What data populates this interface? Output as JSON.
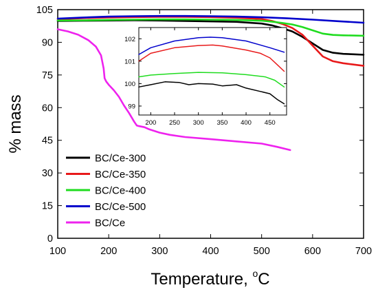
{
  "chart_data": [
    {
      "type": "line",
      "xlabel": "Temperature, ",
      "xlabel_unit": "C",
      "xlabel_unit_superscript": "o",
      "ylabel": "% mass",
      "xlim": [
        100,
        700
      ],
      "ylim": [
        0,
        105
      ],
      "xticks": [
        100,
        200,
        300,
        400,
        500,
        600,
        700
      ],
      "yticks": [
        0,
        15,
        30,
        45,
        60,
        75,
        90,
        105
      ],
      "legend": "left, lower-middle",
      "series": [
        {
          "name": "BC/Ce-300",
          "color": "#000000",
          "x": [
            100,
            150,
            200,
            250,
            300,
            350,
            400,
            450,
            500,
            520,
            540,
            560,
            580,
            600,
            620,
            640,
            660,
            680,
            700
          ],
          "y": [
            99.8,
            99.9,
            100.0,
            100.1,
            100.0,
            99.8,
            99.6,
            99.4,
            98.6,
            97.8,
            96.5,
            95.0,
            92.5,
            89.5,
            86.5,
            85.2,
            84.7,
            84.5,
            84.3
          ]
        },
        {
          "name": "BC/Ce-350",
          "color": "#e8191a",
          "x": [
            100,
            150,
            200,
            250,
            300,
            350,
            400,
            450,
            500,
            520,
            540,
            560,
            580,
            600,
            620,
            640,
            660,
            680,
            700
          ],
          "y": [
            100.6,
            101.1,
            101.4,
            101.6,
            101.7,
            101.7,
            101.6,
            101.3,
            100.7,
            99.8,
            98.5,
            96.6,
            93.5,
            88.5,
            83.5,
            81.3,
            80.4,
            79.8,
            79.2
          ]
        },
        {
          "name": "BC/Ce-400",
          "color": "#1fdc1f",
          "x": [
            100,
            150,
            200,
            250,
            300,
            350,
            400,
            450,
            500,
            520,
            540,
            560,
            580,
            600,
            620,
            640,
            660,
            700
          ],
          "y": [
            100.0,
            100.1,
            100.3,
            100.4,
            100.5,
            100.5,
            100.4,
            100.3,
            99.9,
            99.5,
            98.9,
            98.2,
            97.0,
            95.5,
            94.0,
            93.4,
            93.2,
            93.0
          ]
        },
        {
          "name": "BC/Ce-500",
          "color": "#0000cc",
          "x": [
            100,
            150,
            200,
            250,
            300,
            350,
            400,
            450,
            500,
            550,
            600,
            650,
            700
          ],
          "y": [
            100.9,
            101.4,
            101.8,
            102.0,
            102.1,
            102.1,
            102.0,
            101.8,
            101.5,
            101.0,
            100.4,
            99.7,
            99.0
          ]
        },
        {
          "name": "BC/Ce",
          "color": "#ee22ee",
          "x": [
            100,
            120,
            140,
            160,
            175,
            185,
            190,
            192,
            195,
            200,
            210,
            220,
            230,
            240,
            250,
            255,
            260,
            270,
            280,
            300,
            320,
            350,
            400,
            450,
            500,
            530,
            556
          ],
          "y": [
            96.0,
            95.0,
            93.5,
            91.0,
            88.0,
            84.0,
            78.0,
            73.5,
            72.0,
            70.5,
            68.0,
            65.0,
            61.0,
            57.5,
            53.5,
            51.8,
            51.5,
            51.0,
            50.0,
            48.5,
            47.5,
            46.5,
            45.5,
            44.5,
            43.5,
            42.0,
            40.5
          ]
        }
      ]
    },
    {
      "type": "line",
      "inset": true,
      "xlim": [
        175,
        485
      ],
      "ylim": [
        98.6,
        102.5
      ],
      "xticks": [
        200,
        250,
        300,
        350,
        400,
        450
      ],
      "yticks": [
        99,
        100,
        101,
        102
      ],
      "series": [
        {
          "name": "BC/Ce-500",
          "color": "#0000cc",
          "x": [
            175,
            200,
            250,
            300,
            325,
            350,
            400,
            450,
            480
          ],
          "y": [
            101.3,
            101.6,
            101.9,
            102.05,
            102.07,
            102.05,
            101.9,
            101.6,
            101.4
          ]
        },
        {
          "name": "BC/Ce-350",
          "color": "#e8191a",
          "x": [
            175,
            200,
            250,
            300,
            330,
            350,
            400,
            430,
            450,
            465,
            480
          ],
          "y": [
            101.0,
            101.35,
            101.6,
            101.7,
            101.72,
            101.68,
            101.5,
            101.35,
            101.15,
            100.85,
            100.55
          ]
        },
        {
          "name": "BC/Ce-400",
          "color": "#1fdc1f",
          "x": [
            175,
            200,
            250,
            300,
            350,
            400,
            440,
            460,
            480
          ],
          "y": [
            100.3,
            100.38,
            100.45,
            100.5,
            100.48,
            100.4,
            100.3,
            100.15,
            99.85
          ]
        },
        {
          "name": "BC/Ce-300",
          "color": "#000000",
          "x": [
            175,
            200,
            230,
            260,
            280,
            300,
            330,
            350,
            380,
            400,
            430,
            450,
            465,
            480
          ],
          "y": [
            99.85,
            99.95,
            100.08,
            100.05,
            99.95,
            100.0,
            99.98,
            99.9,
            99.95,
            99.8,
            99.65,
            99.55,
            99.3,
            99.1
          ]
        }
      ]
    }
  ]
}
